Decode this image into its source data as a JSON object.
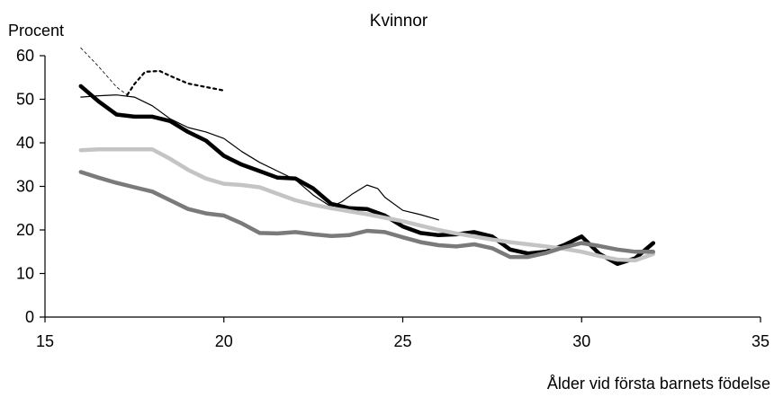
{
  "chart_data": {
    "type": "line",
    "title": "Kvinnor",
    "ylabel": "Procent",
    "xlabel": "Ålder vid första barnets födelse",
    "xlim": [
      15,
      35
    ],
    "ylim": [
      0,
      60
    ],
    "xticks": [
      15,
      20,
      25,
      30,
      35
    ],
    "yticks": [
      0,
      10,
      20,
      30,
      40,
      50,
      60
    ],
    "grid": false,
    "legend": "none",
    "series": [
      {
        "style": "thin-dashed",
        "color": "#000000",
        "points": [
          [
            16.0,
            61.8
          ],
          [
            16.5,
            57.5
          ],
          [
            17.0,
            52.8
          ],
          [
            17.3,
            51.0
          ]
        ]
      },
      {
        "style": "dotted",
        "color": "#000000",
        "points": [
          [
            17.3,
            51.0
          ],
          [
            17.5,
            53.5
          ],
          [
            17.8,
            56.3
          ],
          [
            18.2,
            56.5
          ],
          [
            18.6,
            55.0
          ],
          [
            19.0,
            53.6
          ],
          [
            19.5,
            52.8
          ],
          [
            20.0,
            52.0
          ]
        ]
      },
      {
        "style": "thin",
        "color": "#000000",
        "points": [
          [
            16.0,
            50.5
          ],
          [
            16.5,
            50.8
          ],
          [
            17.0,
            51.0
          ],
          [
            17.5,
            50.5
          ],
          [
            18.0,
            48.5
          ],
          [
            18.5,
            45.5
          ],
          [
            19.0,
            43.5
          ],
          [
            19.5,
            42.5
          ],
          [
            20.0,
            41.0
          ],
          [
            20.5,
            38.0
          ],
          [
            21.0,
            35.5
          ],
          [
            21.5,
            33.5
          ],
          [
            22.0,
            31.5
          ],
          [
            22.5,
            28.0
          ],
          [
            23.0,
            25.3
          ],
          [
            23.3,
            26.5
          ],
          [
            23.6,
            28.3
          ],
          [
            24.0,
            30.3
          ],
          [
            24.3,
            29.5
          ],
          [
            24.5,
            27.5
          ],
          [
            25.0,
            24.5
          ],
          [
            25.5,
            23.5
          ],
          [
            26.0,
            22.3
          ]
        ]
      },
      {
        "style": "thick",
        "color": "#000000",
        "points": [
          [
            16.0,
            53.0
          ],
          [
            16.5,
            49.5
          ],
          [
            17.0,
            46.5
          ],
          [
            17.5,
            46.0
          ],
          [
            18.0,
            46.0
          ],
          [
            18.5,
            45.0
          ],
          [
            19.0,
            42.5
          ],
          [
            19.5,
            40.5
          ],
          [
            20.0,
            37.0
          ],
          [
            20.5,
            35.0
          ],
          [
            21.0,
            33.5
          ],
          [
            21.5,
            32.0
          ],
          [
            22.0,
            31.8
          ],
          [
            22.5,
            29.5
          ],
          [
            23.0,
            26.0
          ],
          [
            23.5,
            25.0
          ],
          [
            24.0,
            24.8
          ],
          [
            24.5,
            23.3
          ],
          [
            25.0,
            20.8
          ],
          [
            25.5,
            19.3
          ],
          [
            26.0,
            18.8
          ],
          [
            26.5,
            19.0
          ],
          [
            27.0,
            19.5
          ],
          [
            27.5,
            18.5
          ],
          [
            28.0,
            15.5
          ],
          [
            28.5,
            14.6
          ],
          [
            29.0,
            15.0
          ],
          [
            29.5,
            16.5
          ],
          [
            30.0,
            18.5
          ],
          [
            30.5,
            14.5
          ],
          [
            31.0,
            12.2
          ],
          [
            31.5,
            13.5
          ],
          [
            32.0,
            17.0
          ]
        ]
      },
      {
        "style": "thick",
        "color": "#c4c4c4",
        "points": [
          [
            16.0,
            38.3
          ],
          [
            16.5,
            38.5
          ],
          [
            17.0,
            38.5
          ],
          [
            17.5,
            38.5
          ],
          [
            18.0,
            38.5
          ],
          [
            18.5,
            36.3
          ],
          [
            19.0,
            33.8
          ],
          [
            19.5,
            31.8
          ],
          [
            20.0,
            30.6
          ],
          [
            20.5,
            30.3
          ],
          [
            21.0,
            29.8
          ],
          [
            21.5,
            28.3
          ],
          [
            22.0,
            26.8
          ],
          [
            22.5,
            25.8
          ],
          [
            23.0,
            25.0
          ],
          [
            23.5,
            24.3
          ],
          [
            24.0,
            23.6
          ],
          [
            24.5,
            22.8
          ],
          [
            25.0,
            22.0
          ],
          [
            25.5,
            21.0
          ],
          [
            26.0,
            20.0
          ],
          [
            26.5,
            19.2
          ],
          [
            27.0,
            18.5
          ],
          [
            27.5,
            17.8
          ],
          [
            28.0,
            17.2
          ],
          [
            28.5,
            16.7
          ],
          [
            29.0,
            16.2
          ],
          [
            29.5,
            15.7
          ],
          [
            30.0,
            15.0
          ],
          [
            30.5,
            14.0
          ],
          [
            31.0,
            13.2
          ],
          [
            31.5,
            13.0
          ],
          [
            32.0,
            14.5
          ]
        ]
      },
      {
        "style": "thick",
        "color": "#7a7a7a",
        "points": [
          [
            16.0,
            33.3
          ],
          [
            16.5,
            32.0
          ],
          [
            17.0,
            30.8
          ],
          [
            17.5,
            29.8
          ],
          [
            18.0,
            28.8
          ],
          [
            18.5,
            26.8
          ],
          [
            19.0,
            24.8
          ],
          [
            19.5,
            23.8
          ],
          [
            20.0,
            23.3
          ],
          [
            20.5,
            21.5
          ],
          [
            21.0,
            19.3
          ],
          [
            21.5,
            19.2
          ],
          [
            22.0,
            19.5
          ],
          [
            22.5,
            19.0
          ],
          [
            23.0,
            18.6
          ],
          [
            23.5,
            18.8
          ],
          [
            24.0,
            19.8
          ],
          [
            24.5,
            19.5
          ],
          [
            25.0,
            18.3
          ],
          [
            25.5,
            17.2
          ],
          [
            26.0,
            16.5
          ],
          [
            26.5,
            16.2
          ],
          [
            27.0,
            16.7
          ],
          [
            27.5,
            15.8
          ],
          [
            28.0,
            13.8
          ],
          [
            28.5,
            13.8
          ],
          [
            29.0,
            14.7
          ],
          [
            29.5,
            16.0
          ],
          [
            30.0,
            17.0
          ],
          [
            30.5,
            16.3
          ],
          [
            31.0,
            15.5
          ],
          [
            31.5,
            15.0
          ],
          [
            32.0,
            15.0
          ]
        ]
      }
    ]
  }
}
